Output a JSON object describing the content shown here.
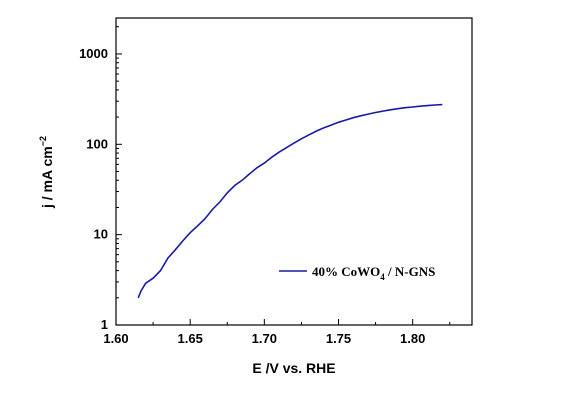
{
  "chart_data": {
    "type": "line",
    "xlabel": "E /V vs. RHE",
    "ylabel": {
      "main": "j / mA cm",
      "sup": "−2"
    },
    "xlim": [
      1.6,
      1.84
    ],
    "ylim": [
      1,
      2500
    ],
    "yscale": "log",
    "x_ticks": [
      1.6,
      1.65,
      1.7,
      1.75,
      1.8
    ],
    "x_tick_labels": [
      "1.60",
      "1.65",
      "1.70",
      "1.75",
      "1.80"
    ],
    "y_ticks": [
      1,
      10,
      100,
      1000
    ],
    "y_tick_labels": [
      "1",
      "10",
      "100",
      "1000"
    ],
    "grid": false,
    "legend_position": "lower-right",
    "series": [
      {
        "name": {
          "main": "40% CoWO",
          "sub": "4",
          "rest": " / N-GNS"
        },
        "color": "#1a1aa8",
        "x": [
          1.615,
          1.617,
          1.62,
          1.625,
          1.63,
          1.635,
          1.64,
          1.645,
          1.65,
          1.655,
          1.66,
          1.665,
          1.67,
          1.675,
          1.68,
          1.685,
          1.69,
          1.695,
          1.7,
          1.705,
          1.71,
          1.715,
          1.72,
          1.725,
          1.73,
          1.735,
          1.74,
          1.745,
          1.75,
          1.755,
          1.76,
          1.765,
          1.77,
          1.775,
          1.78,
          1.785,
          1.79,
          1.795,
          1.8,
          1.805,
          1.81,
          1.815,
          1.82
        ],
        "y": [
          2.0,
          2.4,
          2.9,
          3.3,
          4.0,
          5.5,
          6.8,
          8.5,
          10.5,
          12.5,
          15.0,
          19.0,
          23.0,
          29.0,
          35.0,
          40.0,
          47.0,
          55.0,
          62.0,
          72.0,
          82.0,
          92.0,
          103.0,
          115.0,
          127.0,
          140.0,
          152.0,
          163.0,
          175.0,
          186.0,
          197.0,
          207.0,
          216.0,
          225.0,
          233.0,
          241.0,
          248.0,
          254.0,
          259.0,
          264.0,
          268.0,
          272.0,
          275.0
        ]
      }
    ]
  }
}
